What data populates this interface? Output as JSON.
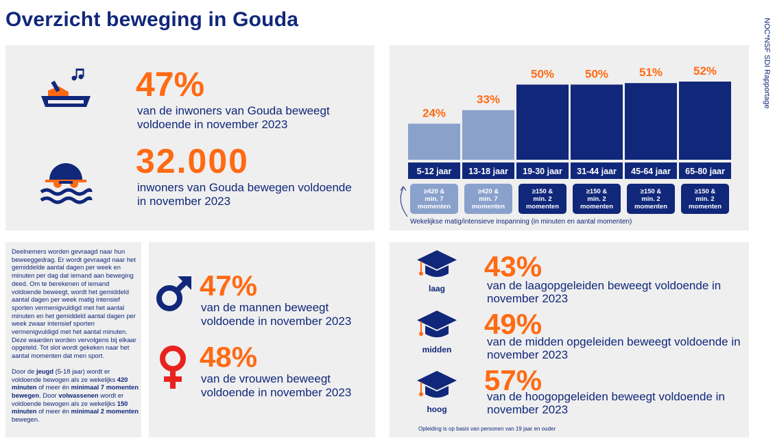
{
  "title": "Overzicht beweging in Gouda",
  "side_caption": "NOC*NSF SDI Rapportage",
  "colors": {
    "navy": "#10277a",
    "orange": "#ff6a13",
    "light_blue": "#8aa1cc",
    "panel": "#efefef",
    "red": "#e8231f"
  },
  "top_stats": {
    "pct": {
      "value": "47%",
      "desc": "van de inwoners van Gouda beweegt voldoende in november 2023",
      "icon": "step-aerobics-icon"
    },
    "count": {
      "value": "32.000",
      "desc": "inwoners van Gouda bewegen voldoende in november 2023",
      "icon": "swimmer-icon"
    }
  },
  "chart_data": {
    "type": "bar",
    "categories": [
      "5-12 jaar",
      "13-18 jaar",
      "19-30 jaar",
      "31-44 jaar",
      "45-64 jaar",
      "65-80 jaar"
    ],
    "values": [
      24,
      33,
      50,
      50,
      51,
      52
    ],
    "value_labels": [
      "24%",
      "33%",
      "50%",
      "50%",
      "51%",
      "52%"
    ],
    "ylim": [
      0,
      52
    ],
    "bar_colors": [
      "#8aa1cc",
      "#8aa1cc",
      "#10277a",
      "#10277a",
      "#10277a",
      "#10277a"
    ],
    "criteria": [
      [
        "≥420 &",
        "min. 7",
        "momenten"
      ],
      [
        "≥420 &",
        "min. 7",
        "momenten"
      ],
      [
        "≥150 &",
        "min. 2",
        "momenten"
      ],
      [
        "≥150 &",
        "min. 2",
        "momenten"
      ],
      [
        "≥150 &",
        "min. 2",
        "momenten"
      ],
      [
        "≥150 &",
        "min. 2",
        "momenten"
      ]
    ],
    "note": "Wekelijkse matig/intensieve inspanning (in minuten en aantal momenten)"
  },
  "method": {
    "p1": "Deelnemers worden gevraagd naar hun beweeggedrag. Er wordt gevraagd naar het gemiddelde aantal dagen per week en minuten per dag dat iemand aan beweging deed. Om te berekenen of iemand voldoende beweegt, wordt het gemiddeld aantal dagen per week matig intensief sporten vermenigvuldigd met het aantal minuten en het gemiddeld aantal dagen per week zwaar intensief sporten vermenigvuldigd met het aantal minuten. Deze waarden worden vervolgens bij elkaar opgeteld. Tot slot wordt gekeken naar het aantal momenten dat men sport.",
    "p2_a": "Door de ",
    "p2_b": "jeugd",
    "p2_c": " (5-18 jaar) wordt er voldoende bewogen als ze wekelijks ",
    "p2_d": "420 minuten",
    "p2_e": " of meer én ",
    "p2_f": "minimaal 7 momenten bewegen",
    "p2_g": ". Door ",
    "p2_h": "volwassenen",
    "p2_i": " wordt er voldoende bewogen als ze wekelijks ",
    "p2_j": "150 minuten",
    "p2_k": " of meer én ",
    "p2_l": "minimaal 2 momenten",
    "p2_m": " bewegen."
  },
  "gender": {
    "male": {
      "value": "47%",
      "desc": "van de mannen beweegt voldoende in november 2023",
      "icon": "male-symbol-icon"
    },
    "female": {
      "value": "48%",
      "desc": "van de vrouwen beweegt voldoende in november 2023",
      "icon": "female-symbol-icon"
    }
  },
  "education": {
    "items": [
      {
        "label": "laag",
        "value": "43%",
        "desc": "van de laagopgeleiden beweegt voldoende in november 2023"
      },
      {
        "label": "midden",
        "value": "49%",
        "desc": "van de midden opgeleiden beweegt voldoende in november 2023"
      },
      {
        "label": "hoog",
        "value": "57%",
        "desc": "van de hoogopgeleiden beweegt voldoende in november 2023"
      }
    ],
    "footnote": "Opleiding is op basis van personen van 19 jaar en ouder"
  }
}
